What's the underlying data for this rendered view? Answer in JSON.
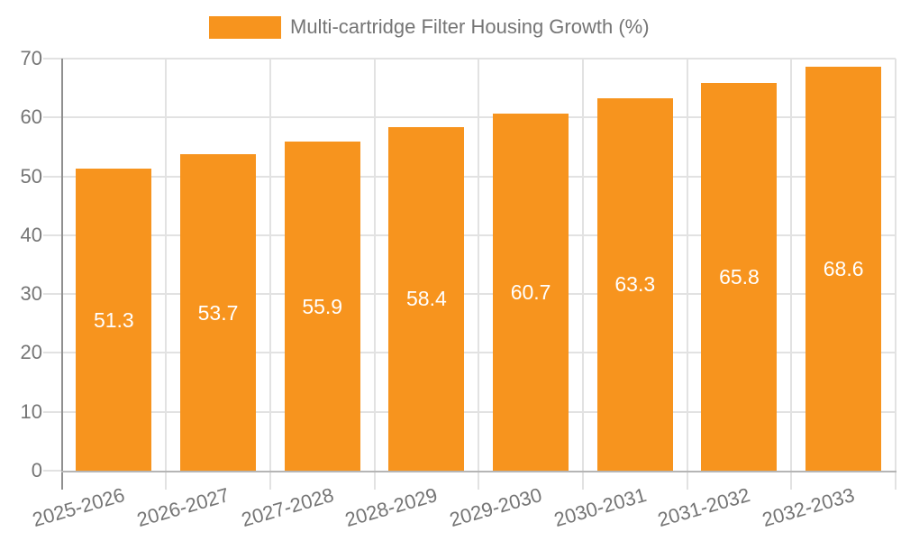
{
  "legend": {
    "label": "Multi-cartridge Filter Housing Growth (%)",
    "swatch_color": "#F7941E"
  },
  "chart_data": {
    "type": "bar",
    "title": "Multi-cartridge Filter Housing Growth (%)",
    "categories": [
      "2025-2026",
      "2026-2027",
      "2027-2028",
      "2028-2029",
      "2029-2030",
      "2030-2031",
      "2031-2032",
      "2032-2033"
    ],
    "values": [
      51.3,
      53.7,
      55.9,
      58.4,
      60.7,
      63.3,
      65.8,
      68.6
    ],
    "xlabel": "",
    "ylabel": "",
    "ylim": [
      0,
      70
    ],
    "yticks": [
      0,
      10,
      20,
      30,
      40,
      50,
      60,
      70
    ],
    "grid": true,
    "legend_position": "top-center",
    "x_tick_rotation_deg": -16,
    "colors": {
      "bar": "#F7941E",
      "value_label": "#FFFFFF",
      "axis_text": "#757575",
      "gridline": "#E2E2E2",
      "y_spine": "#8F8F8F",
      "x_axis_line": "#B5B5B5"
    }
  }
}
